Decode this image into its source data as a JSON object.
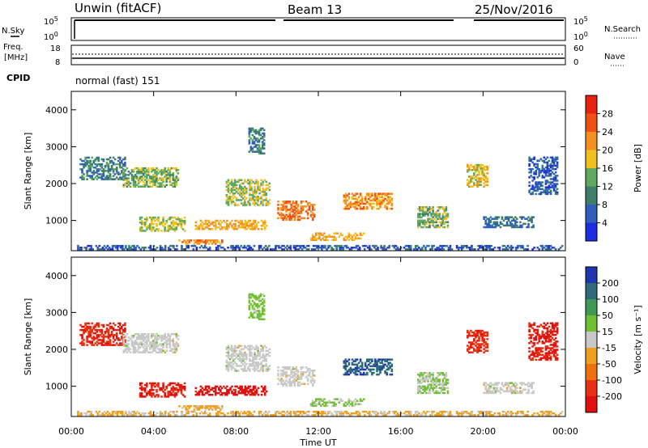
{
  "header": {
    "station": "Unwin (fitACF)",
    "beam": "Beam 13",
    "date": "25/Nov/2016"
  },
  "status_panels": {
    "nsky": {
      "label": "N.Sky",
      "ticks_left": [
        "10^5",
        "10^0"
      ]
    },
    "nsearch": {
      "label": "N.Search",
      "ticks_right": [
        "10^5",
        "10^0"
      ]
    },
    "freq": {
      "label_line1": "Freq.",
      "label_line2": "[MHz]",
      "ticks_left": [
        "18",
        "8"
      ]
    },
    "nave": {
      "label": "Nave",
      "ticks_right": [
        "60",
        "0"
      ]
    },
    "cpid": {
      "label": "CPID",
      "mode": "normal (fast) 151"
    }
  },
  "colors": {
    "power_scale": [
      "#1e2de0",
      "#2f5ec0",
      "#3f7f6a",
      "#5fa860",
      "#f0c020",
      "#f59020",
      "#f05010",
      "#e82010"
    ],
    "velocity_scale": [
      "#2035b0",
      "#2f6a7a",
      "#3f9a55",
      "#70c030",
      "#c8c8c8",
      "#f0a020",
      "#f07010",
      "#e83010",
      "#e01010"
    ]
  },
  "chart_data": [
    {
      "type": "heatmap",
      "name": "power",
      "xlabel": "",
      "ylabel": "Slant Range [km]",
      "x_ticks": [
        "00:00",
        "04:00",
        "08:00",
        "12:00",
        "16:00",
        "20:00",
        "00:00"
      ],
      "y_ticks": [
        "1000",
        "2000",
        "3000",
        "4000"
      ],
      "xlim": [
        0,
        24
      ],
      "ylim": [
        180,
        4500
      ],
      "colorbar": {
        "label": "Power [dB]",
        "ticks": [
          "4",
          "8",
          "12",
          "16",
          "20",
          "24",
          "28"
        ],
        "range": [
          0,
          32
        ]
      },
      "features": [
        {
          "t": [
            0.2,
            23.8
          ],
          "r": [
            200,
            320
          ],
          "v": 6
        },
        {
          "t": [
            0.4,
            2.6
          ],
          "r": [
            2100,
            2700
          ],
          "v": 10
        },
        {
          "t": [
            2.5,
            5.2
          ],
          "r": [
            1900,
            2400
          ],
          "v": 14
        },
        {
          "t": [
            3.3,
            5.5
          ],
          "r": [
            700,
            1100
          ],
          "v": 16
        },
        {
          "t": [
            5.2,
            7.3
          ],
          "r": [
            350,
            450
          ],
          "v": 22
        },
        {
          "t": [
            6.0,
            9.5
          ],
          "r": [
            750,
            1000
          ],
          "v": 20
        },
        {
          "t": [
            7.5,
            9.6
          ],
          "r": [
            1400,
            2100
          ],
          "v": 16
        },
        {
          "t": [
            8.6,
            9.4
          ],
          "r": [
            2800,
            3500
          ],
          "v": 10
        },
        {
          "t": [
            10.0,
            11.8
          ],
          "r": [
            1000,
            1500
          ],
          "v": 24
        },
        {
          "t": [
            11.6,
            14.2
          ],
          "r": [
            450,
            650
          ],
          "v": 20
        },
        {
          "t": [
            13.2,
            15.6
          ],
          "r": [
            1300,
            1750
          ],
          "v": 22
        },
        {
          "t": [
            16.8,
            18.3
          ],
          "r": [
            800,
            1350
          ],
          "v": 14
        },
        {
          "t": [
            19.2,
            20.2
          ],
          "r": [
            1900,
            2500
          ],
          "v": 18
        },
        {
          "t": [
            20.0,
            22.4
          ],
          "r": [
            800,
            1100
          ],
          "v": 8
        },
        {
          "t": [
            22.2,
            23.6
          ],
          "r": [
            1700,
            2700
          ],
          "v": 6
        }
      ]
    },
    {
      "type": "heatmap",
      "name": "velocity",
      "xlabel": "Time UT",
      "ylabel": "Slant Range [km]",
      "x_ticks": [
        "00:00",
        "04:00",
        "08:00",
        "12:00",
        "16:00",
        "20:00",
        "00:00"
      ],
      "y_ticks": [
        "1000",
        "2000",
        "3000",
        "4000"
      ],
      "xlim": [
        0,
        24
      ],
      "ylim": [
        180,
        4500
      ],
      "colorbar": {
        "label": "Velocity [m s⁻¹]",
        "ticks": [
          "200",
          "100",
          "50",
          "15",
          "-15",
          "-50",
          "-100",
          "-200"
        ],
        "range": [
          -250,
          250
        ]
      },
      "features": [
        {
          "t": [
            0.2,
            23.8
          ],
          "r": [
            200,
            320
          ],
          "v": -40
        },
        {
          "t": [
            0.4,
            2.6
          ],
          "r": [
            2100,
            2700
          ],
          "v": -180
        },
        {
          "t": [
            2.5,
            5.2
          ],
          "r": [
            1900,
            2400
          ],
          "v": 0
        },
        {
          "t": [
            3.3,
            5.5
          ],
          "r": [
            700,
            1100
          ],
          "v": -200
        },
        {
          "t": [
            5.2,
            7.3
          ],
          "r": [
            350,
            450
          ],
          "v": -50
        },
        {
          "t": [
            6.0,
            9.5
          ],
          "r": [
            750,
            1000
          ],
          "v": -220
        },
        {
          "t": [
            7.5,
            9.6
          ],
          "r": [
            1400,
            2100
          ],
          "v": 0
        },
        {
          "t": [
            8.6,
            9.4
          ],
          "r": [
            2800,
            3500
          ],
          "v": 50
        },
        {
          "t": [
            10.0,
            11.8
          ],
          "r": [
            1000,
            1500
          ],
          "v": 0
        },
        {
          "t": [
            11.6,
            14.2
          ],
          "r": [
            450,
            650
          ],
          "v": 40
        },
        {
          "t": [
            13.2,
            15.6
          ],
          "r": [
            1300,
            1750
          ],
          "v": 180
        },
        {
          "t": [
            16.8,
            18.3
          ],
          "r": [
            800,
            1350
          ],
          "v": 30
        },
        {
          "t": [
            19.2,
            20.2
          ],
          "r": [
            1900,
            2500
          ],
          "v": -180
        },
        {
          "t": [
            20.0,
            22.4
          ],
          "r": [
            800,
            1100
          ],
          "v": 0
        },
        {
          "t": [
            22.2,
            23.6
          ],
          "r": [
            1700,
            2700
          ],
          "v": -200
        }
      ]
    }
  ]
}
